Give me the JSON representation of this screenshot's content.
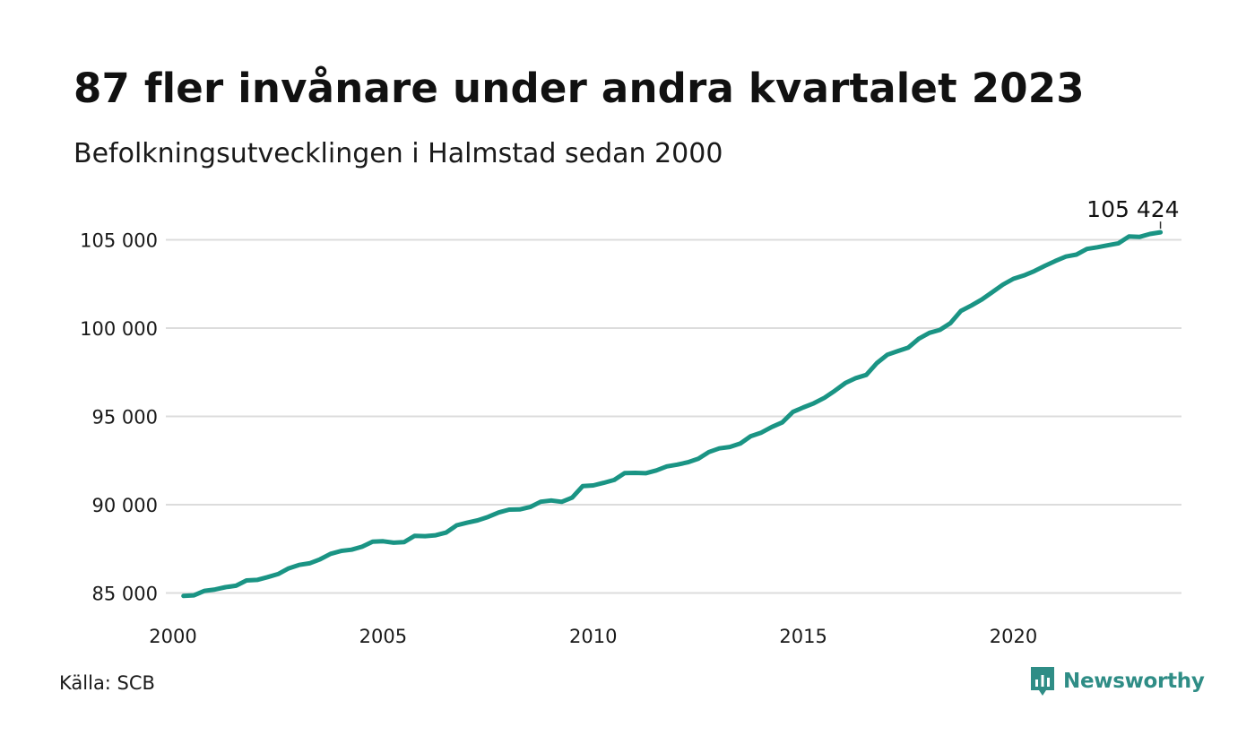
{
  "title": "87 fler invånare under andra kvartalet 2023",
  "subtitle": "Befolkningsutvecklingen i Halmstad sedan 2000",
  "source": "Källa: SCB",
  "brand": {
    "name": "Newsworthy",
    "icon": "newsworthy-logo-icon",
    "color": "#2f8d86"
  },
  "colors": {
    "line": "#1a9484",
    "grid": "#dcdcdc",
    "text": "#111111"
  },
  "chart_data": {
    "type": "line",
    "title": "87 fler invånare under andra kvartalet 2023",
    "subtitle": "Befolkningsutvecklingen i Halmstad sedan 2000",
    "xlabel": "",
    "ylabel": "",
    "xlim": [
      2000,
      2024
    ],
    "ylim": [
      84500,
      106000
    ],
    "grid": true,
    "legend": "none",
    "x_ticks": [
      2000,
      2005,
      2010,
      2015,
      2020
    ],
    "x_tick_labels": [
      "2000",
      "2005",
      "2010",
      "2015",
      "2020"
    ],
    "y_ticks": [
      85000,
      90000,
      95000,
      100000,
      105000
    ],
    "y_tick_labels": [
      "85 000",
      "90 000",
      "95 000",
      "100 000",
      "105 000"
    ],
    "end_label": "105 424",
    "series": [
      {
        "x": [
          2000.25,
          2000.5,
          2000.75,
          2001.0,
          2001.25,
          2001.5,
          2001.75,
          2002.0,
          2002.25,
          2002.5,
          2002.75,
          2003.0,
          2003.25,
          2003.5,
          2003.75,
          2004.0,
          2004.25,
          2004.5,
          2004.75,
          2005.0,
          2005.25,
          2005.5,
          2005.75,
          2006.0,
          2006.25,
          2006.5,
          2006.75,
          2007.0,
          2007.25,
          2007.5,
          2007.75,
          2008.0,
          2008.25,
          2008.5,
          2008.75,
          2009.0,
          2009.25,
          2009.5,
          2009.75,
          2010.0,
          2010.25,
          2010.5,
          2010.75,
          2011.0,
          2011.25,
          2011.5,
          2011.75,
          2012.0,
          2012.25,
          2012.5,
          2012.75,
          2013.0,
          2013.25,
          2013.5,
          2013.75,
          2014.0,
          2014.25,
          2014.5,
          2014.75,
          2015.0,
          2015.25,
          2015.5,
          2015.75,
          2016.0,
          2016.25,
          2016.5,
          2016.75,
          2017.0,
          2017.25,
          2017.5,
          2017.75,
          2018.0,
          2018.25,
          2018.5,
          2018.75,
          2019.0,
          2019.25,
          2019.5,
          2019.75,
          2020.0,
          2020.25,
          2020.5,
          2020.75,
          2021.0,
          2021.25,
          2021.5,
          2021.75,
          2022.0,
          2022.25,
          2022.5,
          2022.75,
          2023.0,
          2023.25,
          2023.5
        ],
        "values": [
          84830,
          84870,
          85120,
          85200,
          85330,
          85410,
          85710,
          85740,
          85900,
          86070,
          86390,
          86590,
          86680,
          86910,
          87220,
          87380,
          87450,
          87620,
          87910,
          87930,
          87850,
          87880,
          88240,
          88220,
          88270,
          88420,
          88830,
          88980,
          89110,
          89310,
          89560,
          89720,
          89730,
          89870,
          90170,
          90240,
          90160,
          90400,
          91050,
          91090,
          91240,
          91400,
          91790,
          91800,
          91780,
          91940,
          92170,
          92270,
          92400,
          92600,
          92980,
          93190,
          93270,
          93460,
          93880,
          94080,
          94400,
          94660,
          95250,
          95510,
          95740,
          96050,
          96450,
          96890,
          97170,
          97350,
          98020,
          98490,
          98700,
          98900,
          99400,
          99730,
          99900,
          100280,
          100970,
          101280,
          101620,
          102040,
          102460,
          102790,
          102980,
          103230,
          103530,
          103800,
          104050,
          104160,
          104480,
          104580,
          104690,
          104800,
          105190,
          105160,
          105330,
          105424
        ]
      }
    ]
  }
}
